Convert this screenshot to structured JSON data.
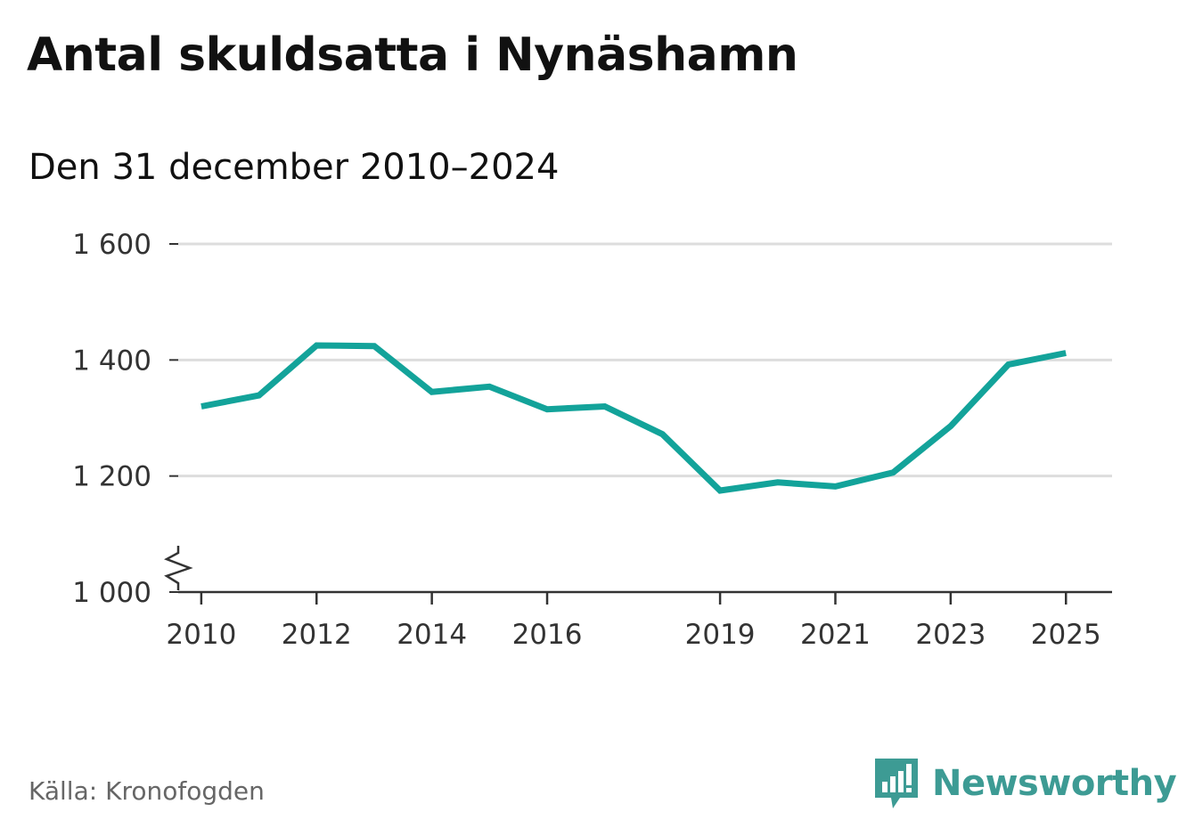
{
  "header": {
    "title": "Antal skuldsatta i Nynäshamn",
    "subtitle": "Den 31 december 2010–2024"
  },
  "footer": {
    "source": "Källa: Kronofogden",
    "brand": "Newsworthy"
  },
  "colors": {
    "line": "#13a39a",
    "grid": "#dddddd",
    "axis": "#333333",
    "brand": "#3d9b94"
  },
  "chart_data": {
    "type": "line",
    "title": "Antal skuldsatta i Nynäshamn",
    "subtitle": "Den 31 december 2010–2024",
    "xlabel": "",
    "ylabel": "",
    "xlim": [
      2009.6,
      2025.8
    ],
    "ylim": [
      1000,
      1600
    ],
    "y_axis_break": true,
    "grid": true,
    "x_ticks": [
      2010,
      2012,
      2014,
      2016,
      2019,
      2021,
      2023,
      2025
    ],
    "x_tick_labels": [
      "2010",
      "2012",
      "2014",
      "2016",
      "2019",
      "2021",
      "2023",
      "2025"
    ],
    "y_ticks": [
      1000,
      1200,
      1400,
      1600
    ],
    "y_tick_labels": [
      "1 000",
      "1 200",
      "1 400",
      "1 600"
    ],
    "series": [
      {
        "name": "Antal skuldsatta",
        "x": [
          2010,
          2011,
          2012,
          2013,
          2014,
          2015,
          2016,
          2017,
          2018,
          2019,
          2020,
          2021,
          2022,
          2023,
          2024,
          2025
        ],
        "values": [
          1320,
          1339,
          1425,
          1424,
          1345,
          1354,
          1315,
          1320,
          1272,
          1175,
          1189,
          1182,
          1206,
          1286,
          1392,
          1412
        ]
      }
    ]
  }
}
